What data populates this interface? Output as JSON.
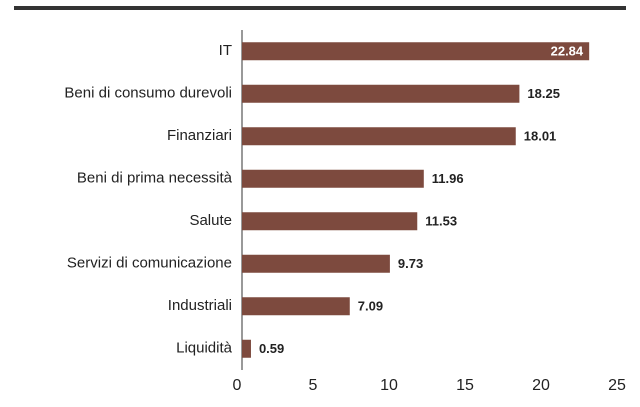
{
  "chart_data": {
    "type": "bar",
    "orientation": "horizontal",
    "categories": [
      "IT",
      "Beni di consumo durevoli",
      "Finanziari",
      "Beni di prima necessità",
      "Salute",
      "Servizi di comunicazione",
      "Industriali",
      "Liquidità"
    ],
    "values": [
      22.84,
      18.25,
      18.01,
      11.96,
      11.53,
      9.73,
      7.09,
      0.59
    ],
    "color": "#7d4a3e",
    "xlim": [
      0,
      25
    ],
    "xticks": [
      0,
      5,
      10,
      15,
      20,
      25
    ],
    "grid": false
  }
}
